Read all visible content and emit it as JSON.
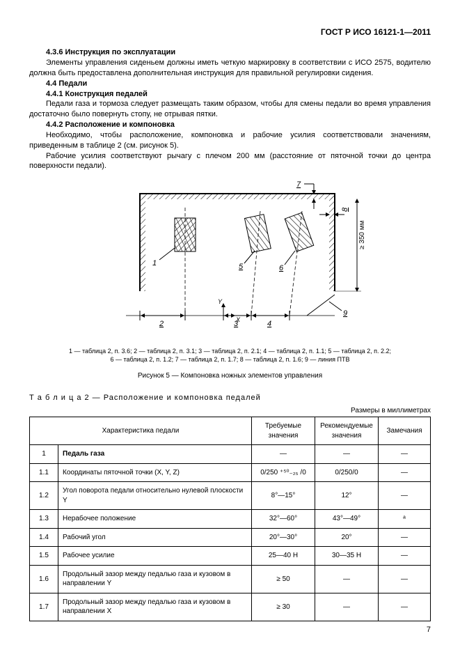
{
  "header": {
    "standard": "ГОСТ Р ИСО 16121-1—2011"
  },
  "s436": {
    "head": "4.3.6 Инструкция по эксплуатации",
    "text": "Элементы управления сиденьем должны иметь четкую маркировку в соответствии с ИСО 2575, водителю должна быть предоставлена дополнительная инструкция для правильной регулировки сидения."
  },
  "s44": {
    "head": "4.4 Педали"
  },
  "s441": {
    "head": "4.4.1 Конструкция педалей",
    "text": "Педали газа и тормоза следует размещать таким образом, чтобы для смены педали во время управления достаточно было повернуть стопу, не отрывая пятки."
  },
  "s442": {
    "head": "4.4.2 Расположение и компоновка",
    "p1": "Необходимо, чтобы расположение, компоновка и рабочие усилия соответствовали значениям, приведенным в таблице 2 (см. рисунок 5).",
    "p2": "Рабочие усилия соответствуют рычагу с плечом 200 мм (расстояние от пяточной точки до центра поверхности педали)."
  },
  "figure": {
    "svg": {
      "frame_stroke": "#000000",
      "hatch_stroke": "#000000",
      "dash": "4,3",
      "dim_label_right": "≥ 350 мм",
      "callouts": {
        "c1": "1",
        "c2": "2",
        "c3": "3",
        "c4": "4",
        "c5": "5",
        "c6": "6",
        "c7": "7",
        "c8": "8",
        "c9": "9"
      },
      "axes": {
        "x": "X",
        "y": "Y"
      }
    },
    "refs_line1": "1 — таблица 2, п. 3.6; 2 — таблица 2, п. 3.1; 3 — таблица 2, п. 2.1; 4 — таблица 2, п. 1.1; 5 — таблица 2, п. 2.2;",
    "refs_line2": "6 — таблица 2, п. 1.2; 7 — таблица 2, п. 1.7; 8 — таблица 2, п. 1.6; 9 — линия ПТВ",
    "title": "Рисунок 5 — Компоновка ножных элементов управления"
  },
  "table": {
    "label": "Т а б л и ц а  2 — Расположение и компоновка педалей",
    "units": "Размеры в миллиметрах",
    "cols": {
      "c1": "Характеристика педали",
      "c2": "Требуемые значения",
      "c3": "Рекомендуемые значения",
      "c4": "Замечания"
    },
    "rows": [
      {
        "n": "1",
        "c": "Педаль газа",
        "v1": "—",
        "v2": "—",
        "v3": "—",
        "head": true
      },
      {
        "n": "1.1",
        "c": "Координаты пяточной точки (X, Y, Z)",
        "v1": "0/250 ⁺⁵⁰₋₂₅ /0",
        "v2": "0/250/0",
        "v3": "—"
      },
      {
        "n": "1.2",
        "c": "Угол поворота педали относительно нулевой плоскости Y",
        "v1": "8°—15°",
        "v2": "12°",
        "v3": "—"
      },
      {
        "n": "1.3",
        "c": "Нерабочее положение",
        "v1": "32°—60°",
        "v2": "43°—49°",
        "v3": "ᵃ"
      },
      {
        "n": "1.4",
        "c": "Рабочий угол",
        "v1": "20°—30°",
        "v2": "20°",
        "v3": "—"
      },
      {
        "n": "1.5",
        "c": "Рабочее усилие",
        "v1": "25—40 Н",
        "v2": "30—35 Н",
        "v3": "—"
      },
      {
        "n": "1.6",
        "c": "Продольный зазор между педалью газа и кузовом в направлении Y",
        "v1": "≥ 50",
        "v2": "—",
        "v3": "—"
      },
      {
        "n": "1.7",
        "c": "Продольный зазор между педалью газа и кузовом в направлении X",
        "v1": "≥ 30",
        "v2": "—",
        "v3": "—"
      }
    ]
  },
  "page_number": "7"
}
